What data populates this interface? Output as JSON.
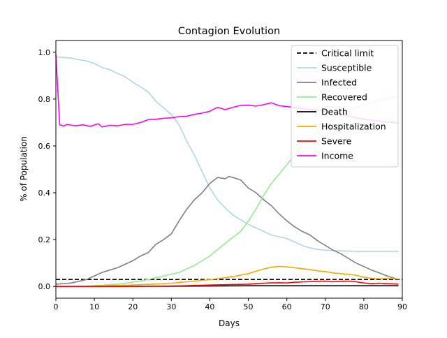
{
  "chart_data": {
    "type": "line",
    "title": "Contagion Evolution",
    "xlabel": "Days",
    "ylabel": "% of Population",
    "xlim": [
      0,
      90
    ],
    "ylim": [
      -0.05,
      1.05
    ],
    "xticks": [
      0,
      10,
      20,
      30,
      40,
      50,
      60,
      70,
      80,
      90
    ],
    "yticks": [
      0.0,
      0.2,
      0.4,
      0.6,
      0.8,
      1.0
    ],
    "xtick_labels": [
      "0",
      "10",
      "20",
      "30",
      "40",
      "50",
      "60",
      "70",
      "80",
      "90"
    ],
    "ytick_labels": [
      "0.0",
      "0.2",
      "0.4",
      "0.6",
      "0.8",
      "1.0"
    ],
    "grid": false,
    "legend_position": "top-right",
    "series": [
      {
        "name": "Critical limit",
        "color": "#000000",
        "dashed": true,
        "x": [
          0,
          90
        ],
        "y": [
          0.03,
          0.03
        ]
      },
      {
        "name": "Susceptible",
        "color": "#add8e6",
        "x": [
          0,
          2,
          4,
          6,
          8,
          10,
          12,
          14,
          16,
          18,
          20,
          22,
          24,
          26,
          28,
          30,
          32,
          34,
          36,
          38,
          40,
          42,
          44,
          46,
          48,
          50,
          52,
          54,
          56,
          58,
          60,
          62,
          64,
          66,
          68,
          70,
          72,
          74,
          76,
          78,
          80,
          82,
          84,
          86,
          88,
          89
        ],
        "y": [
          0.98,
          0.978,
          0.975,
          0.968,
          0.963,
          0.952,
          0.935,
          0.925,
          0.91,
          0.895,
          0.872,
          0.852,
          0.83,
          0.79,
          0.762,
          0.735,
          0.69,
          0.62,
          0.56,
          0.49,
          0.42,
          0.37,
          0.335,
          0.305,
          0.285,
          0.265,
          0.25,
          0.235,
          0.22,
          0.212,
          0.205,
          0.19,
          0.175,
          0.165,
          0.158,
          0.155,
          0.153,
          0.152,
          0.151,
          0.15,
          0.15,
          0.15,
          0.15,
          0.15,
          0.15,
          0.15
        ]
      },
      {
        "name": "Infected",
        "color": "#808080",
        "x": [
          0,
          2,
          4,
          6,
          8,
          10,
          12,
          14,
          16,
          18,
          20,
          22,
          24,
          26,
          28,
          30,
          32,
          34,
          36,
          38,
          40,
          42,
          44,
          45,
          46,
          48,
          50,
          52,
          54,
          56,
          58,
          60,
          62,
          64,
          66,
          68,
          70,
          72,
          74,
          76,
          78,
          80,
          82,
          84,
          86,
          88,
          89
        ],
        "y": [
          0.01,
          0.012,
          0.015,
          0.022,
          0.03,
          0.045,
          0.06,
          0.07,
          0.08,
          0.095,
          0.11,
          0.13,
          0.145,
          0.18,
          0.2,
          0.225,
          0.28,
          0.33,
          0.37,
          0.4,
          0.44,
          0.465,
          0.46,
          0.47,
          0.465,
          0.455,
          0.42,
          0.4,
          0.37,
          0.345,
          0.31,
          0.28,
          0.255,
          0.235,
          0.22,
          0.195,
          0.175,
          0.155,
          0.14,
          0.12,
          0.1,
          0.085,
          0.07,
          0.058,
          0.045,
          0.035,
          0.03
        ]
      },
      {
        "name": "Recovered",
        "color": "#90ee90",
        "x": [
          0,
          4,
          8,
          12,
          16,
          20,
          24,
          28,
          32,
          36,
          40,
          44,
          48,
          50,
          52,
          54,
          56,
          58,
          60,
          62,
          64,
          66,
          68,
          70,
          72,
          74,
          76,
          78,
          80,
          82,
          84,
          86,
          88,
          89
        ],
        "y": [
          0,
          0.0,
          0.002,
          0.005,
          0.01,
          0.018,
          0.03,
          0.045,
          0.06,
          0.09,
          0.13,
          0.185,
          0.235,
          0.28,
          0.33,
          0.39,
          0.44,
          0.48,
          0.52,
          0.56,
          0.6,
          0.63,
          0.66,
          0.69,
          0.71,
          0.73,
          0.745,
          0.765,
          0.775,
          0.785,
          0.795,
          0.8,
          0.81,
          0.812
        ]
      },
      {
        "name": "Death",
        "color": "#000000",
        "x": [
          0,
          10,
          20,
          30,
          40,
          50,
          60,
          70,
          80,
          89
        ],
        "y": [
          0,
          0.0,
          0.001,
          0.001,
          0.002,
          0.003,
          0.003,
          0.003,
          0.003,
          0.003
        ]
      },
      {
        "name": "Hospitalization",
        "color": "#ffa500",
        "x": [
          0,
          5,
          10,
          15,
          20,
          25,
          30,
          34,
          38,
          42,
          46,
          50,
          52,
          54,
          56,
          58,
          60,
          62,
          64,
          66,
          68,
          70,
          72,
          74,
          76,
          78,
          80,
          82,
          84,
          86,
          88,
          89
        ],
        "y": [
          0.0,
          0.0,
          0.002,
          0.004,
          0.006,
          0.01,
          0.014,
          0.02,
          0.026,
          0.033,
          0.042,
          0.055,
          0.065,
          0.075,
          0.082,
          0.086,
          0.084,
          0.08,
          0.076,
          0.072,
          0.067,
          0.064,
          0.058,
          0.055,
          0.052,
          0.048,
          0.04,
          0.035,
          0.033,
          0.034,
          0.033,
          0.032
        ]
      },
      {
        "name": "Severe",
        "color": "#ff0000",
        "x": [
          0,
          10,
          20,
          30,
          35,
          40,
          45,
          50,
          52,
          55,
          58,
          60,
          62,
          65,
          68,
          70,
          72,
          74,
          76,
          78,
          80,
          82,
          84,
          86,
          88,
          89
        ],
        "y": [
          0.0,
          0.0,
          0.001,
          0.002,
          0.004,
          0.006,
          0.008,
          0.01,
          0.012,
          0.015,
          0.016,
          0.015,
          0.018,
          0.02,
          0.022,
          0.023,
          0.02,
          0.022,
          0.023,
          0.02,
          0.015,
          0.012,
          0.014,
          0.012,
          0.011,
          0.01
        ]
      },
      {
        "name": "Income",
        "color": "#ff00ff",
        "x": [
          0,
          1,
          2,
          3,
          5,
          7,
          9,
          11,
          12,
          14,
          16,
          18,
          20,
          22,
          24,
          26,
          28,
          30,
          32,
          34,
          36,
          38,
          40,
          42,
          44,
          46,
          48,
          50,
          52,
          54,
          56,
          58,
          60,
          62,
          64,
          66,
          68,
          70,
          72,
          74,
          76,
          78,
          80,
          82,
          84,
          86,
          88,
          89
        ],
        "y": [
          0.99,
          0.69,
          0.685,
          0.692,
          0.686,
          0.69,
          0.684,
          0.695,
          0.681,
          0.688,
          0.686,
          0.692,
          0.692,
          0.7,
          0.712,
          0.714,
          0.718,
          0.72,
          0.725,
          0.727,
          0.735,
          0.74,
          0.748,
          0.765,
          0.755,
          0.765,
          0.773,
          0.774,
          0.77,
          0.776,
          0.784,
          0.772,
          0.768,
          0.764,
          0.76,
          0.756,
          0.752,
          0.748,
          0.744,
          0.738,
          0.728,
          0.72,
          0.714,
          0.71,
          0.706,
          0.702,
          0.699,
          0.697
        ]
      }
    ]
  }
}
